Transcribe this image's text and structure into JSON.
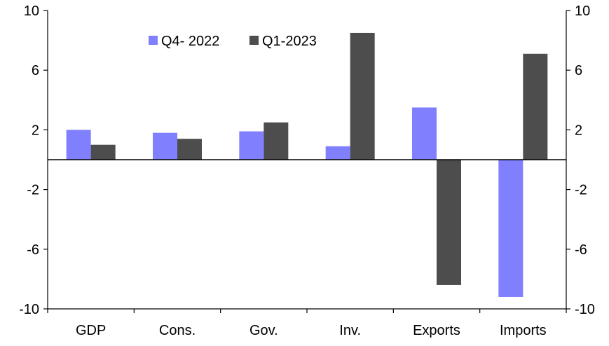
{
  "chart_data": {
    "type": "bar",
    "title": "",
    "categories": [
      "GDP",
      "Cons.",
      "Gov.",
      "Inv.",
      "Exports",
      "Imports"
    ],
    "series": [
      {
        "name": "Q4- 2022",
        "color": "#8080FF",
        "values": [
          2.0,
          1.8,
          1.9,
          0.9,
          3.5,
          -9.2
        ]
      },
      {
        "name": "Q1-2023",
        "color": "#4D4D4D",
        "values": [
          1.0,
          1.4,
          2.5,
          8.5,
          -8.4,
          7.1
        ]
      }
    ],
    "ylim": [
      -10,
      10
    ],
    "yticks": [
      10,
      6,
      2,
      -2,
      -6,
      -10
    ],
    "ytick_labels": [
      "10",
      "6",
      "2",
      "-2",
      "-6",
      "-10"
    ],
    "y_axes": "left-and-right",
    "grid": false,
    "legend_position": "top-left"
  }
}
